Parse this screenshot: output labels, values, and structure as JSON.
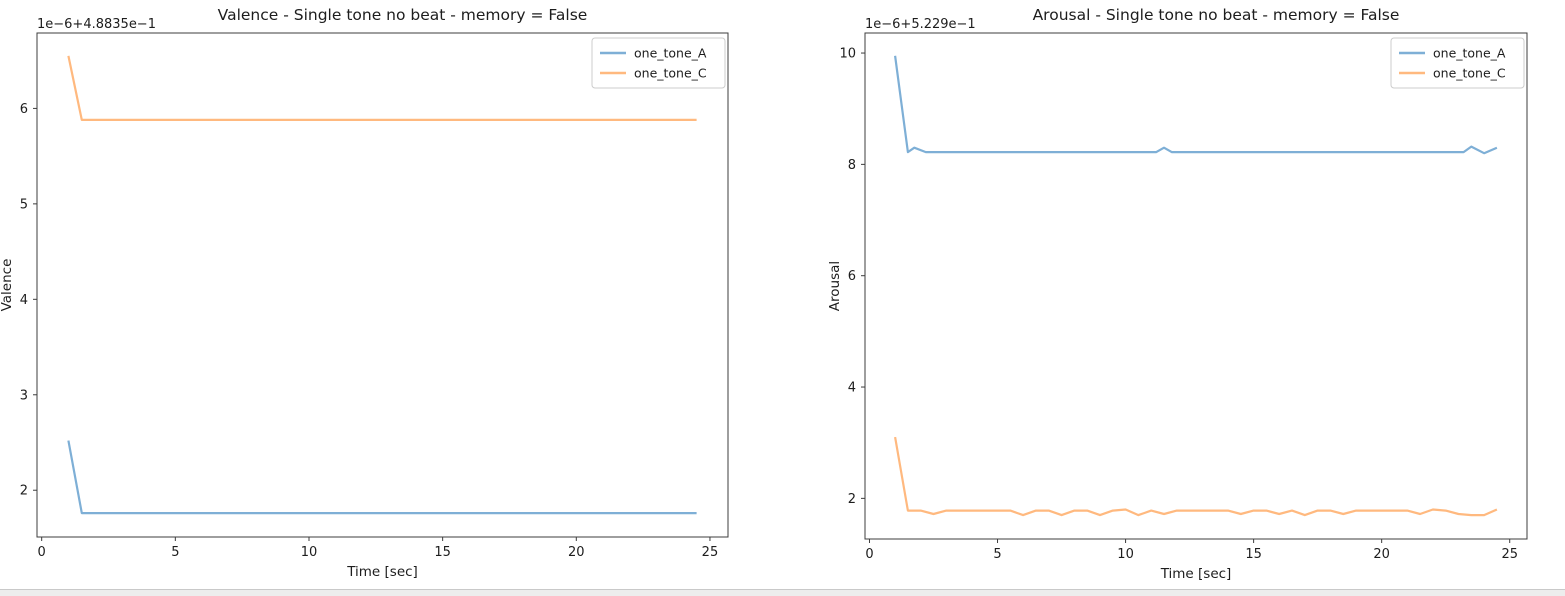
{
  "page": {
    "background": "#ffffff",
    "bottom_strip_color": "#ededed"
  },
  "colors": {
    "series_blue": "#7eafd6",
    "series_orange": "#ffb97f",
    "spine": "#3c3c3c",
    "text": "#1d1d1d",
    "legend_border": "#cccccc"
  },
  "chart_data": [
    {
      "id": "valence",
      "type": "line",
      "title": "Valence - Single tone no beat - memory = False",
      "xlabel": "Time [sec]",
      "ylabel": "Valence",
      "offset_text": "1e−6+4.8835e−1",
      "xlim": [
        -0.175,
        25.675
      ],
      "ylim": [
        1.51,
        6.79
      ],
      "xticks": [
        0,
        5,
        10,
        15,
        20,
        25
      ],
      "yticks": [
        2,
        3,
        4,
        5,
        6
      ],
      "grid": false,
      "legend_position": "upper right",
      "legend_entries": [
        "one_tone_A",
        "one_tone_C"
      ],
      "series": [
        {
          "name": "one_tone_A",
          "color": "#7eafd6",
          "points": [
            [
              1.0,
              2.52
            ],
            [
              1.5,
              1.76
            ],
            [
              24.5,
              1.76
            ]
          ]
        },
        {
          "name": "one_tone_C",
          "color": "#ffb97f",
          "points": [
            [
              1.0,
              6.55
            ],
            [
              1.5,
              5.88
            ],
            [
              24.5,
              5.88
            ]
          ]
        }
      ]
    },
    {
      "id": "arousal",
      "type": "line",
      "title": "Arousal - Single tone no beat - memory = False",
      "xlabel": "Time [sec]",
      "ylabel": "Arousal",
      "offset_text": "1e−6+5.229e−1",
      "xlim": [
        -0.175,
        25.675
      ],
      "ylim": [
        1.27,
        10.36
      ],
      "xticks": [
        0,
        5,
        10,
        15,
        20,
        25
      ],
      "yticks": [
        2,
        4,
        6,
        8,
        10
      ],
      "grid": false,
      "legend_position": "upper right",
      "legend_entries": [
        "one_tone_A",
        "one_tone_C"
      ],
      "series": [
        {
          "name": "one_tone_A",
          "color": "#7eafd6",
          "points": [
            [
              1.0,
              9.95
            ],
            [
              1.5,
              8.22
            ],
            [
              1.75,
              8.3
            ],
            [
              2.2,
              8.22
            ],
            [
              11.2,
              8.22
            ],
            [
              11.5,
              8.3
            ],
            [
              11.8,
              8.22
            ],
            [
              23.2,
              8.22
            ],
            [
              23.5,
              8.32
            ],
            [
              24.0,
              8.2
            ],
            [
              24.5,
              8.3
            ]
          ]
        },
        {
          "name": "one_tone_C",
          "color": "#ffb97f",
          "points": [
            [
              1.0,
              3.1
            ],
            [
              1.5,
              1.78
            ],
            [
              2.0,
              1.78
            ],
            [
              2.5,
              1.72
            ],
            [
              3.0,
              1.78
            ],
            [
              3.5,
              1.78
            ],
            [
              4.0,
              1.78
            ],
            [
              4.5,
              1.78
            ],
            [
              5.0,
              1.78
            ],
            [
              5.5,
              1.78
            ],
            [
              6.0,
              1.7
            ],
            [
              6.5,
              1.78
            ],
            [
              7.0,
              1.78
            ],
            [
              7.5,
              1.7
            ],
            [
              8.0,
              1.78
            ],
            [
              8.5,
              1.78
            ],
            [
              9.0,
              1.7
            ],
            [
              9.5,
              1.78
            ],
            [
              10.0,
              1.8
            ],
            [
              10.5,
              1.7
            ],
            [
              11.0,
              1.78
            ],
            [
              11.5,
              1.72
            ],
            [
              12.0,
              1.78
            ],
            [
              12.5,
              1.78
            ],
            [
              13.0,
              1.78
            ],
            [
              13.5,
              1.78
            ],
            [
              14.0,
              1.78
            ],
            [
              14.5,
              1.72
            ],
            [
              15.0,
              1.78
            ],
            [
              15.5,
              1.78
            ],
            [
              16.0,
              1.72
            ],
            [
              16.5,
              1.78
            ],
            [
              17.0,
              1.7
            ],
            [
              17.5,
              1.78
            ],
            [
              18.0,
              1.78
            ],
            [
              18.5,
              1.72
            ],
            [
              19.0,
              1.78
            ],
            [
              19.5,
              1.78
            ],
            [
              20.0,
              1.78
            ],
            [
              20.5,
              1.78
            ],
            [
              21.0,
              1.78
            ],
            [
              21.5,
              1.72
            ],
            [
              22.0,
              1.8
            ],
            [
              22.5,
              1.78
            ],
            [
              23.0,
              1.72
            ],
            [
              23.5,
              1.7
            ],
            [
              24.0,
              1.7
            ],
            [
              24.5,
              1.8
            ]
          ]
        }
      ]
    }
  ]
}
